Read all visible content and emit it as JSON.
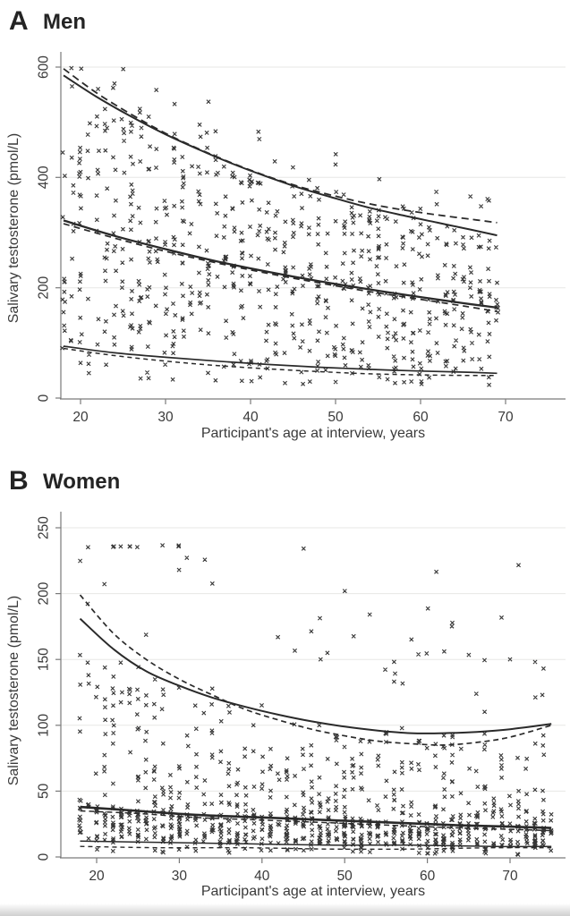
{
  "figure": {
    "background": "#ffffff",
    "marker_glyph": "x",
    "marker_color": "#1b1b1b",
    "curve_color": "#2a2a2a",
    "axis_color": "#7a7a7a",
    "grid_color": "#e7e7e5",
    "tick_label_color": "#3a3a3a"
  },
  "chart_data": [
    {
      "type": "scatter",
      "panel_label": "A",
      "title": "Men",
      "xlabel": "Participant's age at interview, years",
      "ylabel": "Salivary testosterone (pmol/L)",
      "xlim": [
        16,
        75
      ],
      "ylim": [
        0,
        620
      ],
      "x_ticks": [
        20,
        30,
        40,
        50,
        60,
        70
      ],
      "y_ticks": [
        0,
        200,
        400,
        600
      ],
      "grid": "horizontal",
      "legend": "none",
      "series": [
        {
          "name": "p95_solid",
          "style": "solid",
          "width": 2.0,
          "points": [
            [
              18,
              585
            ],
            [
              22,
              545
            ],
            [
              26,
              510
            ],
            [
              30,
              478
            ],
            [
              34,
              450
            ],
            [
              38,
              424
            ],
            [
              42,
              401
            ],
            [
              46,
              380
            ],
            [
              50,
              362
            ],
            [
              54,
              345
            ],
            [
              58,
              331
            ],
            [
              62,
              318
            ],
            [
              66,
              305
            ],
            [
              69,
              295
            ]
          ]
        },
        {
          "name": "p95_dashed",
          "style": "dashed",
          "dash": "8 5",
          "width": 1.8,
          "points": [
            [
              18,
              597
            ],
            [
              22,
              552
            ],
            [
              26,
              514
            ],
            [
              30,
              480
            ],
            [
              34,
              451
            ],
            [
              38,
              425
            ],
            [
              42,
              402
            ],
            [
              46,
              382
            ],
            [
              50,
              366
            ],
            [
              54,
              352
            ],
            [
              58,
              341
            ],
            [
              62,
              332
            ],
            [
              66,
              324
            ],
            [
              69,
              318
            ]
          ]
        },
        {
          "name": "p50_solid",
          "style": "solid",
          "width": 2.3,
          "points": [
            [
              18,
              322
            ],
            [
              24,
              294
            ],
            [
              30,
              270
            ],
            [
              36,
              248
            ],
            [
              42,
              229
            ],
            [
              48,
              212
            ],
            [
              54,
              197
            ],
            [
              60,
              183
            ],
            [
              65,
              172
            ],
            [
              69,
              164
            ]
          ]
        },
        {
          "name": "p50_dashed",
          "style": "dashed",
          "dash": "7 5",
          "width": 1.7,
          "points": [
            [
              18,
              316
            ],
            [
              24,
              290
            ],
            [
              30,
              266
            ],
            [
              36,
              245
            ],
            [
              42,
              226
            ],
            [
              48,
              209
            ],
            [
              54,
              193
            ],
            [
              60,
              179
            ],
            [
              65,
              167
            ],
            [
              69,
              157
            ]
          ]
        },
        {
          "name": "p5_solid",
          "style": "solid",
          "width": 1.7,
          "points": [
            [
              18,
              94
            ],
            [
              24,
              82
            ],
            [
              30,
              74
            ],
            [
              36,
              67
            ],
            [
              42,
              61
            ],
            [
              48,
              56
            ],
            [
              54,
              52
            ],
            [
              60,
              49
            ],
            [
              65,
              47
            ],
            [
              69,
              45
            ]
          ]
        },
        {
          "name": "p5_dashed",
          "style": "dashed",
          "dash": "5 4",
          "width": 1.5,
          "points": [
            [
              18,
              90
            ],
            [
              24,
              77
            ],
            [
              30,
              67
            ],
            [
              36,
              59
            ],
            [
              42,
              53
            ],
            [
              48,
              48
            ],
            [
              54,
              44
            ],
            [
              60,
              42
            ],
            [
              65,
              41
            ],
            [
              69,
              41
            ]
          ]
        }
      ],
      "scatter_cloud": {
        "n": 740,
        "seed": 20240,
        "age_min": 18,
        "age_max": 69,
        "x_jitter": 1.6,
        "y_jitter": 1.4,
        "below_p5_floor_frac": 0.45,
        "above_p95_tail_frac": 0.22,
        "upper_shape": 1.12,
        "lower_shape": 0.95,
        "value_cap": 597,
        "min_value": 25
      }
    },
    {
      "type": "scatter",
      "panel_label": "B",
      "title": "Women",
      "xlabel": "Participant's age at interview, years",
      "ylabel": "Salivary testosterone (pmol/L)",
      "xlim": [
        16,
        77
      ],
      "ylim": [
        0,
        260
      ],
      "x_ticks": [
        20,
        30,
        40,
        50,
        60,
        70
      ],
      "y_ticks": [
        0,
        50,
        100,
        150,
        200,
        250
      ],
      "grid": "horizontal",
      "legend": "none",
      "series": [
        {
          "name": "p95_solid",
          "style": "solid",
          "width": 2.0,
          "points": [
            [
              18,
              181
            ],
            [
              22,
              158
            ],
            [
              26,
              141
            ],
            [
              30,
              130
            ],
            [
              34,
              121
            ],
            [
              38,
              114
            ],
            [
              42,
              108
            ],
            [
              46,
              103
            ],
            [
              50,
              99
            ],
            [
              54,
              96
            ],
            [
              58,
              94
            ],
            [
              62,
              94
            ],
            [
              66,
              95
            ],
            [
              70,
              97
            ],
            [
              75,
              101
            ]
          ]
        },
        {
          "name": "p95_dashed",
          "style": "dashed",
          "dash": "6 4",
          "width": 1.7,
          "points": [
            [
              18,
              199
            ],
            [
              22,
              170
            ],
            [
              26,
              150
            ],
            [
              30,
              135
            ],
            [
              34,
              123
            ],
            [
              38,
              112
            ],
            [
              42,
              104
            ],
            [
              46,
              97
            ],
            [
              50,
              92
            ],
            [
              54,
              88
            ],
            [
              58,
              86
            ],
            [
              62,
              85
            ],
            [
              66,
              87
            ],
            [
              70,
              91
            ],
            [
              75,
              100
            ]
          ]
        },
        {
          "name": "p50_solid",
          "style": "solid",
          "width": 2.6,
          "points": [
            [
              18,
              38
            ],
            [
              25,
              35
            ],
            [
              32,
              32
            ],
            [
              40,
              30
            ],
            [
              48,
              28
            ],
            [
              56,
              26
            ],
            [
              64,
              24
            ],
            [
              70,
              23
            ],
            [
              75,
              22
            ]
          ]
        },
        {
          "name": "p50_dashed",
          "style": "dashed",
          "dash": "6 4",
          "width": 1.5,
          "points": [
            [
              18,
              35
            ],
            [
              25,
              33
            ],
            [
              32,
              30
            ],
            [
              40,
              28
            ],
            [
              48,
              26
            ],
            [
              56,
              24
            ],
            [
              64,
              22
            ],
            [
              70,
              21
            ],
            [
              75,
              20
            ]
          ]
        },
        {
          "name": "p5_solid",
          "style": "solid",
          "width": 1.5,
          "points": [
            [
              18,
              12
            ],
            [
              28,
              11
            ],
            [
              38,
              10
            ],
            [
              48,
              9
            ],
            [
              58,
              9
            ],
            [
              68,
              8
            ],
            [
              75,
              8
            ]
          ]
        },
        {
          "name": "p5_dashed",
          "style": "dashed",
          "dash": "5 4",
          "width": 1.4,
          "points": [
            [
              18,
              8
            ],
            [
              28,
              7
            ],
            [
              38,
              7
            ],
            [
              48,
              6
            ],
            [
              58,
              6
            ],
            [
              68,
              7
            ],
            [
              75,
              7
            ]
          ]
        }
      ],
      "scatter_cloud": {
        "n": 955,
        "seed": 77031,
        "age_min": 18,
        "age_max": 75,
        "x_jitter": 0.9,
        "y_jitter": 1.1,
        "below_p5_floor_frac": 0.25,
        "above_p95_tail_frac": 1.35,
        "upper_shape": 1.75,
        "lower_shape": 1.05,
        "value_cap": 236,
        "min_value": 2
      }
    }
  ]
}
